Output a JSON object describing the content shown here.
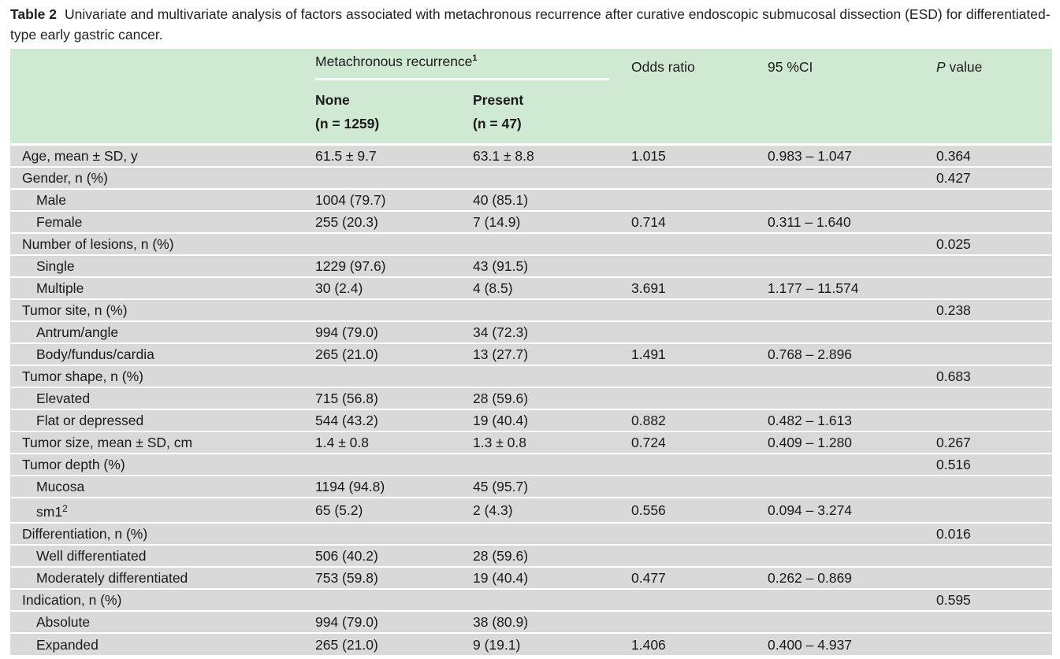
{
  "caption": {
    "label": "Table 2",
    "text": "Univariate and multivariate analysis of factors associated with metachronous recurrence after curative endoscopic submucosal dissection (ESD) for differentiated-type early gastric cancer."
  },
  "header": {
    "group_label": "Metachronous recurrence",
    "group_footnote": "1",
    "odds_ratio": "Odds ratio",
    "ci": "95 %CI",
    "p_italic": "P",
    "p_rest": " value",
    "none_label": "None",
    "none_n": "(n = 1259)",
    "present_label": "Present",
    "present_n": "(n = 47)"
  },
  "rows": [
    {
      "label": "Age, mean ± SD, y",
      "indent": false,
      "sup": "",
      "none": "61.5 ± 9.7",
      "present": "63.1 ± 8.8",
      "or": "1.015",
      "ci": "0.983 – 1.047",
      "p": "0.364"
    },
    {
      "label": "Gender, n (%)",
      "indent": false,
      "sup": "",
      "none": "",
      "present": "",
      "or": "",
      "ci": "",
      "p": "0.427"
    },
    {
      "label": "Male",
      "indent": true,
      "sup": "",
      "none": "1004 (79.7)",
      "present": "40 (85.1)",
      "or": "",
      "ci": "",
      "p": ""
    },
    {
      "label": "Female",
      "indent": true,
      "sup": "",
      "none": "255 (20.3)",
      "present": "7 (14.9)",
      "or": "0.714",
      "ci": "0.311 – 1.640",
      "p": ""
    },
    {
      "label": "Number of lesions, n (%)",
      "indent": false,
      "sup": "",
      "none": "",
      "present": "",
      "or": "",
      "ci": "",
      "p": "0.025"
    },
    {
      "label": "Single",
      "indent": true,
      "sup": "",
      "none": "1229 (97.6)",
      "present": "43 (91.5)",
      "or": "",
      "ci": "",
      "p": ""
    },
    {
      "label": "Multiple",
      "indent": true,
      "sup": "",
      "none": "30 (2.4)",
      "present": "4 (8.5)",
      "or": "3.691",
      "ci": "1.177 – 11.574",
      "p": ""
    },
    {
      "label": "Tumor site, n (%)",
      "indent": false,
      "sup": "",
      "none": "",
      "present": "",
      "or": "",
      "ci": "",
      "p": "0.238"
    },
    {
      "label": "Antrum/angle",
      "indent": true,
      "sup": "",
      "none": "994 (79.0)",
      "present": "34 (72.3)",
      "or": "",
      "ci": "",
      "p": ""
    },
    {
      "label": "Body/fundus/cardia",
      "indent": true,
      "sup": "",
      "none": "265 (21.0)",
      "present": "13 (27.7)",
      "or": "1.491",
      "ci": "0.768 – 2.896",
      "p": ""
    },
    {
      "label": "Tumor shape, n (%)",
      "indent": false,
      "sup": "",
      "none": "",
      "present": "",
      "or": "",
      "ci": "",
      "p": "0.683"
    },
    {
      "label": "Elevated",
      "indent": true,
      "sup": "",
      "none": "715 (56.8)",
      "present": "28 (59.6)",
      "or": "",
      "ci": "",
      "p": ""
    },
    {
      "label": "Flat or depressed",
      "indent": true,
      "sup": "",
      "none": "544 (43.2)",
      "present": "19 (40.4)",
      "or": "0.882",
      "ci": "0.482 – 1.613",
      "p": ""
    },
    {
      "label": "Tumor size, mean ± SD, cm",
      "indent": false,
      "sup": "",
      "none": "1.4 ± 0.8",
      "present": "1.3 ± 0.8",
      "or": "0.724",
      "ci": "0.409 – 1.280",
      "p": "0.267"
    },
    {
      "label": "Tumor depth (%)",
      "indent": false,
      "sup": "",
      "none": "",
      "present": "",
      "or": "",
      "ci": "",
      "p": "0.516"
    },
    {
      "label": "Mucosa",
      "indent": true,
      "sup": "",
      "none": "1194 (94.8)",
      "present": "45 (95.7)",
      "or": "",
      "ci": "",
      "p": ""
    },
    {
      "label": "sm1",
      "indent": true,
      "sup": "2",
      "none": "65 (5.2)",
      "present": "2 (4.3)",
      "or": "0.556",
      "ci": "0.094 – 3.274",
      "p": ""
    },
    {
      "label": "Differentiation, n (%)",
      "indent": false,
      "sup": "",
      "none": "",
      "present": "",
      "or": "",
      "ci": "",
      "p": "0.016"
    },
    {
      "label": "Well differentiated",
      "indent": true,
      "sup": "",
      "none": "506 (40.2)",
      "present": "28 (59.6)",
      "or": "",
      "ci": "",
      "p": ""
    },
    {
      "label": "Moderately differentiated",
      "indent": true,
      "sup": "",
      "none": "753 (59.8)",
      "present": "19 (40.4)",
      "or": "0.477",
      "ci": "0.262 – 0.869",
      "p": ""
    },
    {
      "label": "Indication, n (%)",
      "indent": false,
      "sup": "",
      "none": "",
      "present": "",
      "or": "",
      "ci": "",
      "p": "0.595"
    },
    {
      "label": "Absolute",
      "indent": true,
      "sup": "",
      "none": "994 (79.0)",
      "present": "38 (80.9)",
      "or": "",
      "ci": "",
      "p": ""
    },
    {
      "label": "Expanded",
      "indent": true,
      "sup": "",
      "none": "265 (21.0)",
      "present": "9 (19.1)",
      "or": "1.406",
      "ci": "0.400 – 4.937",
      "p": ""
    }
  ]
}
